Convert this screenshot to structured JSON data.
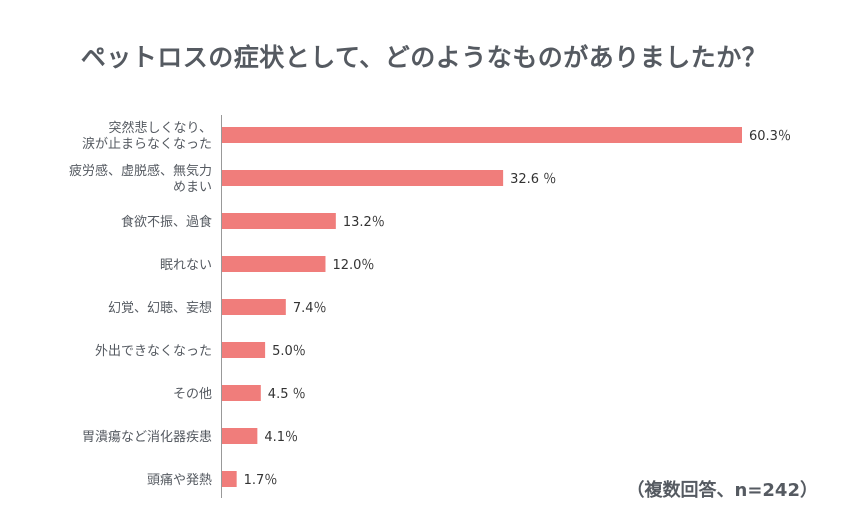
{
  "chart_data": {
    "type": "bar",
    "orientation": "horizontal",
    "title": "ペットロスの症状として、どのようなものがありましたか？",
    "note": "（複数回答、n=242）",
    "bar_color": "#f07d7b",
    "axis_color": "#999999",
    "categories": [
      [
        "突然悲しくなり、",
        "涙が止まらなくなった"
      ],
      [
        "疲労感、虚脱感、無気力",
        "めまい"
      ],
      [
        "食欲不振、過食"
      ],
      [
        "眠れない"
      ],
      [
        "幻覚、幻聴、妄想"
      ],
      [
        "外出できなくなった"
      ],
      [
        "その他"
      ],
      [
        "胃潰瘍など消化器疾患"
      ],
      [
        "頭痛や発熱"
      ]
    ],
    "values": [
      60.3,
      32.6,
      13.2,
      12.0,
      7.4,
      5.0,
      4.5,
      4.1,
      1.7
    ],
    "value_labels": [
      "60.3％",
      "32.6 ％",
      "13.2％",
      "12.0％",
      "7.4％",
      "5.0％",
      "4.5 ％",
      "4.1％",
      "1.7％"
    ],
    "xlim": [
      0,
      60.3
    ]
  }
}
